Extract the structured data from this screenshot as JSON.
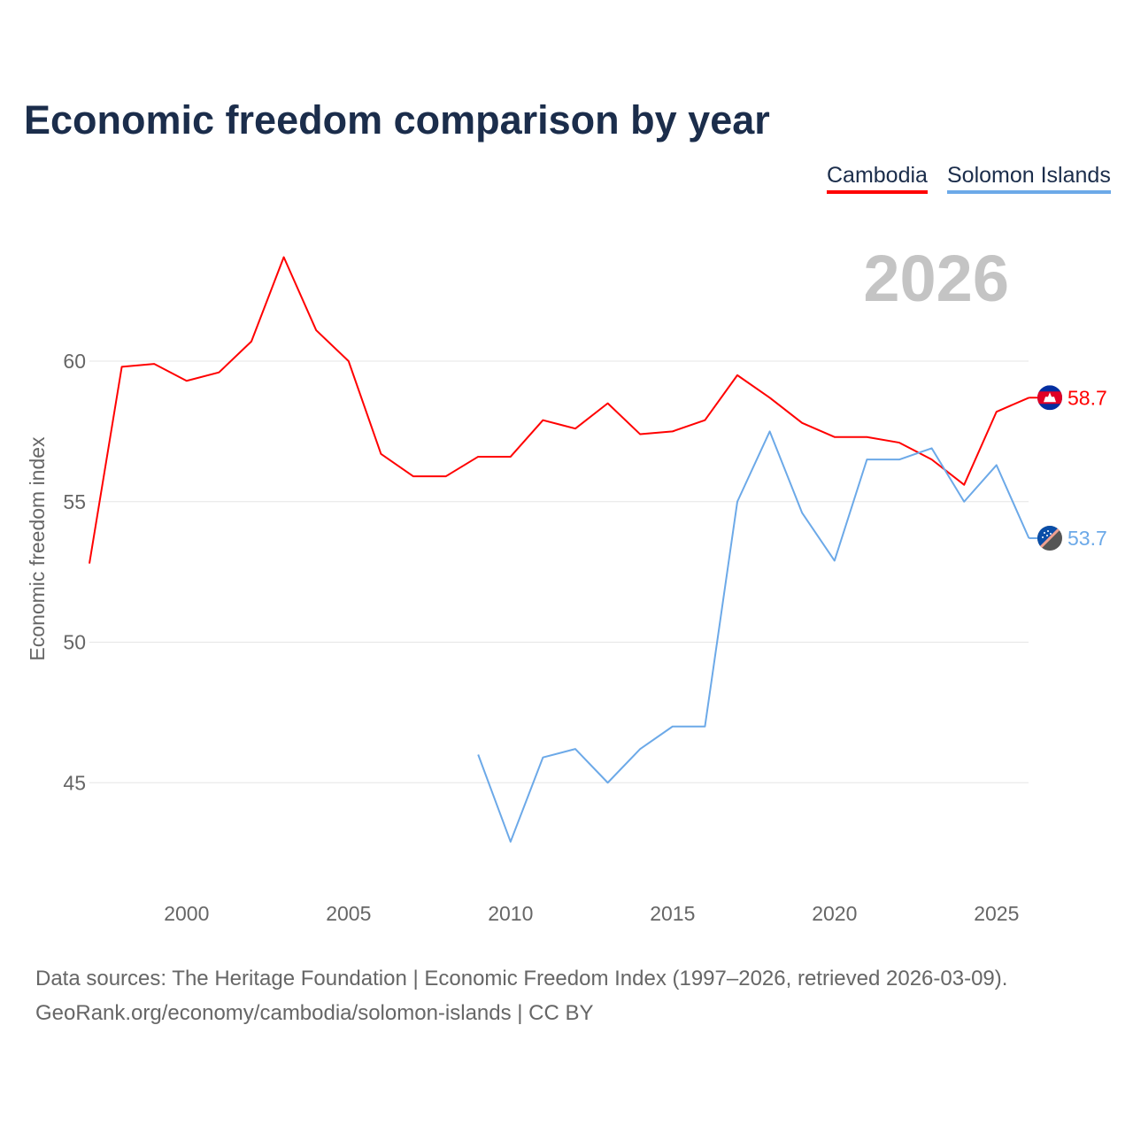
{
  "chart_data": {
    "type": "line",
    "title": "Economic freedom comparison by year",
    "ylabel": "Economic freedom index",
    "xlabel": "",
    "year_watermark": "2026",
    "ylim": [
      41,
      65
    ],
    "xlim": [
      1997,
      2026
    ],
    "yticks": [
      45,
      50,
      55,
      60
    ],
    "xticks": [
      2000,
      2005,
      2010,
      2015,
      2020,
      2025
    ],
    "grid": true,
    "legend_placement": "top-right",
    "series": [
      {
        "name": "Cambodia",
        "color": "#ff0000",
        "flag": "cambodia-flag",
        "end_label": "58.7",
        "x": [
          1997,
          1998,
          1999,
          2000,
          2001,
          2002,
          2003,
          2004,
          2005,
          2006,
          2007,
          2008,
          2009,
          2010,
          2011,
          2012,
          2013,
          2014,
          2015,
          2016,
          2017,
          2018,
          2019,
          2020,
          2021,
          2022,
          2023,
          2024,
          2025,
          2026
        ],
        "values": [
          52.8,
          59.8,
          59.9,
          59.3,
          59.6,
          60.7,
          63.7,
          61.1,
          60.0,
          56.7,
          55.9,
          55.9,
          56.6,
          56.6,
          57.9,
          57.6,
          58.5,
          57.4,
          57.5,
          57.9,
          59.5,
          58.7,
          57.8,
          57.3,
          57.3,
          57.1,
          56.5,
          55.6,
          58.2,
          58.7
        ]
      },
      {
        "name": "Solomon Islands",
        "color": "#6ca9e8",
        "flag": "solomon-islands-flag",
        "end_label": "53.7",
        "x": [
          2009,
          2010,
          2011,
          2012,
          2013,
          2014,
          2015,
          2016,
          2017,
          2018,
          2019,
          2020,
          2021,
          2022,
          2023,
          2024,
          2025,
          2026
        ],
        "values": [
          46.0,
          42.9,
          45.9,
          46.2,
          45.0,
          46.2,
          47.0,
          47.0,
          55.0,
          57.5,
          54.6,
          52.9,
          56.5,
          56.5,
          56.9,
          55.0,
          56.3,
          53.7
        ]
      }
    ]
  },
  "footer": {
    "line1": "Data sources: The Heritage Foundation | Economic Freedom Index (1997–2026, retrieved 2026-03-09).",
    "line2": "GeoRank.org/economy/cambodia/solomon-islands | CC BY"
  }
}
